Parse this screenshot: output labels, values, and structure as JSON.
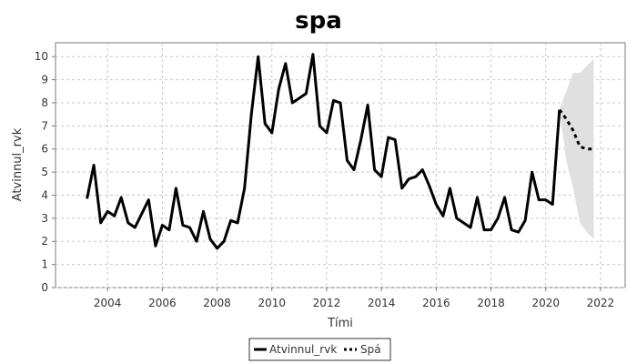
{
  "chart_data": {
    "type": "line",
    "title": "spa",
    "xlabel": "Tími",
    "ylabel": "Atvinnul_rvk",
    "xlim": [
      2002.1,
      2022.9
    ],
    "ylim": [
      0,
      10.6
    ],
    "x_ticks": [
      2004,
      2006,
      2008,
      2010,
      2012,
      2014,
      2016,
      2018,
      2020,
      2022
    ],
    "x_tick_labels": [
      "2004",
      "2006",
      "2008",
      "2010",
      "2012",
      "2014",
      "2016",
      "2018",
      "2020",
      "2022"
    ],
    "y_ticks": [
      0,
      1,
      2,
      3,
      4,
      5,
      6,
      7,
      8,
      9,
      10
    ],
    "y_tick_labels": [
      "0",
      "1",
      "2",
      "3",
      "4",
      "5",
      "6",
      "7",
      "8",
      "9",
      "10"
    ],
    "grid": true,
    "legend_position": "bottom-center",
    "series": [
      {
        "name": "Atvinnul_rvk",
        "style": "solid",
        "color": "#000000",
        "x": [
          2003.25,
          2003.5,
          2003.75,
          2004.0,
          2004.25,
          2004.5,
          2004.75,
          2005.0,
          2005.25,
          2005.5,
          2005.75,
          2006.0,
          2006.25,
          2006.5,
          2006.75,
          2007.0,
          2007.25,
          2007.5,
          2007.75,
          2008.0,
          2008.25,
          2008.5,
          2008.75,
          2009.0,
          2009.25,
          2009.5,
          2009.75,
          2010.0,
          2010.25,
          2010.5,
          2010.75,
          2011.0,
          2011.25,
          2011.5,
          2011.75,
          2012.0,
          2012.25,
          2012.5,
          2012.75,
          2013.0,
          2013.25,
          2013.5,
          2013.75,
          2014.0,
          2014.25,
          2014.5,
          2014.75,
          2015.0,
          2015.25,
          2015.5,
          2015.75,
          2016.0,
          2016.25,
          2016.5,
          2016.75,
          2017.0,
          2017.25,
          2017.5,
          2017.75,
          2018.0,
          2018.25,
          2018.5,
          2018.75,
          2019.0,
          2019.25,
          2019.5,
          2019.75,
          2020.0,
          2020.25,
          2020.5
        ],
        "y": [
          3.85,
          5.3,
          2.8,
          3.3,
          3.1,
          3.9,
          2.8,
          2.6,
          3.2,
          3.8,
          1.8,
          2.7,
          2.5,
          4.3,
          2.7,
          2.6,
          2.0,
          3.3,
          2.1,
          1.7,
          2.0,
          2.9,
          2.8,
          4.3,
          7.5,
          10.0,
          7.1,
          6.7,
          8.6,
          9.7,
          8.0,
          8.2,
          8.4,
          10.1,
          7.0,
          6.7,
          8.1,
          8.0,
          5.5,
          5.1,
          6.4,
          7.9,
          5.1,
          4.8,
          6.5,
          6.4,
          4.3,
          4.7,
          4.8,
          5.1,
          4.4,
          3.6,
          3.1,
          4.3,
          3.0,
          2.8,
          2.6,
          3.9,
          2.5,
          2.5,
          3.0,
          3.9,
          2.5,
          2.4,
          2.9,
          5.0,
          3.8,
          3.8,
          3.6,
          7.7
        ]
      },
      {
        "name": "Spá",
        "style": "dotted",
        "color": "#000000",
        "x": [
          2020.5,
          2020.75,
          2021.0,
          2021.25,
          2021.5,
          2021.75
        ],
        "y": [
          7.7,
          7.3,
          6.8,
          6.1,
          6.0,
          6.0
        ],
        "band_upper": [
          7.7,
          8.5,
          9.3,
          9.3,
          9.6,
          9.9
        ],
        "band_lower": [
          7.7,
          5.5,
          4.3,
          2.8,
          2.4,
          2.1
        ],
        "band_color": "#e0e0e0"
      }
    ]
  }
}
